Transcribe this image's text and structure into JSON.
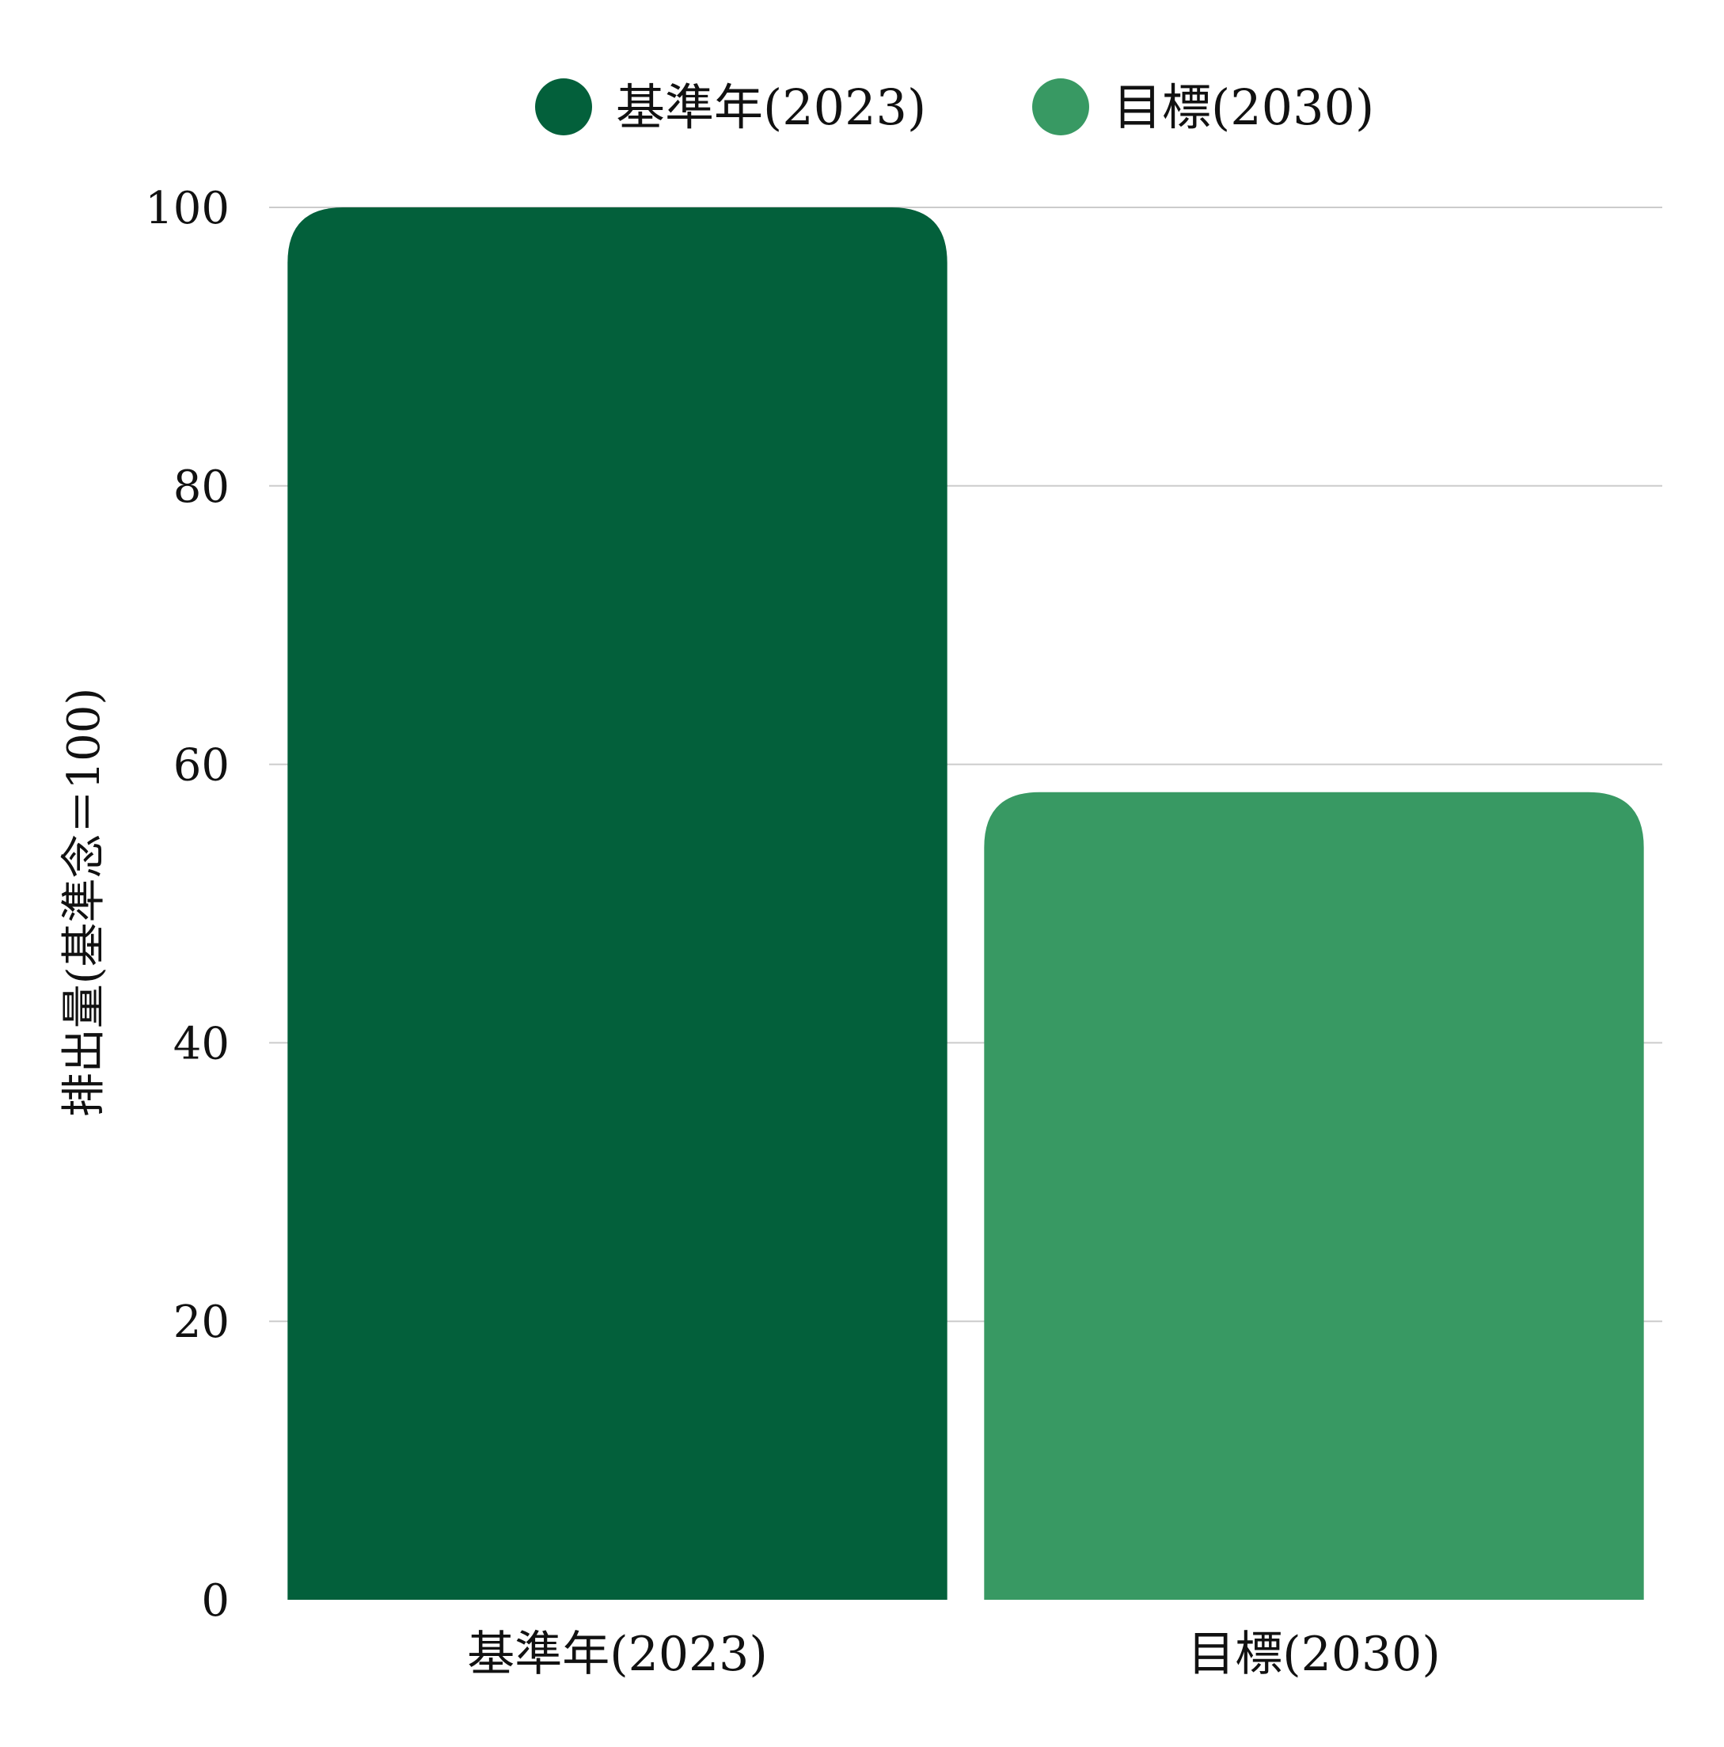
{
  "chart_data": {
    "type": "bar",
    "categories": [
      "基準年(2023)",
      "目標(2030)"
    ],
    "series": [
      {
        "name": "基準年(2023)",
        "color": "#03603b",
        "values": [
          100,
          null
        ]
      },
      {
        "name": "目標(2030)",
        "color": "#389963",
        "values": [
          null,
          58
        ]
      }
    ],
    "ylabel": "排出量(基準念＝100)",
    "ylim": [
      0,
      100
    ],
    "yticks": [
      0,
      20,
      40,
      60,
      80,
      100
    ],
    "grid": true,
    "legend_position": "top"
  }
}
